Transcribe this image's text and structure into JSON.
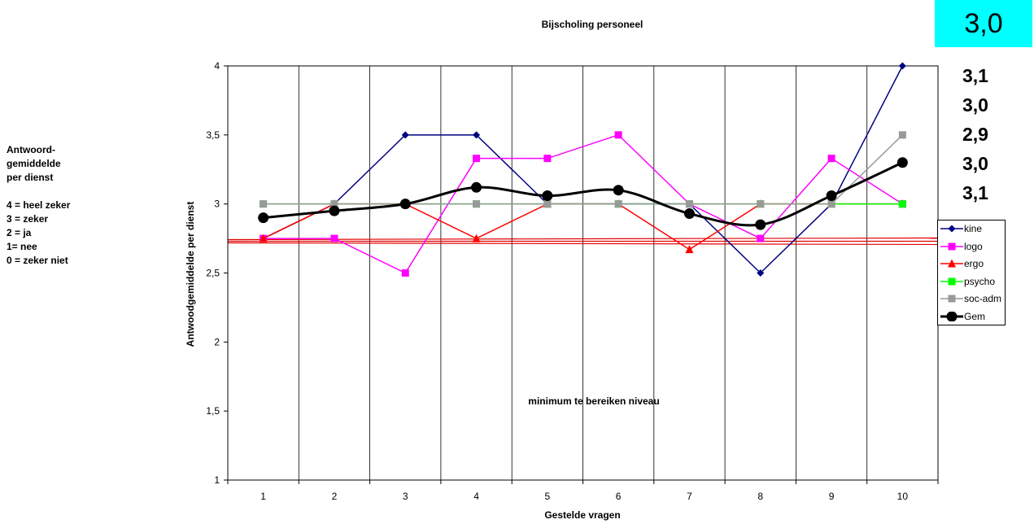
{
  "side_legend": {
    "heading_lines": [
      "Antwoord-",
      "gemiddelde",
      "per dienst"
    ],
    "scale_lines": [
      "4 = heel zeker",
      "3 = zeker",
      "2 = ja",
      "1= nee",
      "0 = zeker niet"
    ]
  },
  "overall_score": "3,0",
  "dept_scores": [
    "3,1",
    "3,0",
    "2,9",
    "3,0",
    "3,1"
  ],
  "chart_data": {
    "type": "line",
    "title": "Bijscholing personeel",
    "xlabel": "Gestelde vragen",
    "ylabel": "Antwoodgemiddelde per dienst",
    "categories": [
      "1",
      "2",
      "3",
      "4",
      "5",
      "6",
      "7",
      "8",
      "9",
      "10"
    ],
    "ylim": [
      1,
      4
    ],
    "yticks": [
      "1",
      "1,5",
      "2",
      "2,5",
      "3",
      "3,5",
      "4"
    ],
    "grid": "vertical",
    "legend_position": "right",
    "threshold": {
      "value": 2.73,
      "label": "minimum te bereiken niveau",
      "color": "#e00000"
    },
    "series": [
      {
        "name": "kine",
        "color": "#000080",
        "marker": "diamond",
        "values": [
          2.75,
          3.0,
          3.5,
          3.5,
          3.0,
          3.0,
          3.0,
          2.5,
          3.0,
          4.0
        ]
      },
      {
        "name": "logo",
        "color": "#ff00ff",
        "marker": "square",
        "values": [
          2.75,
          2.75,
          2.5,
          3.33,
          3.33,
          3.5,
          3.0,
          2.75,
          3.33,
          3.0
        ]
      },
      {
        "name": "ergo",
        "color": "#ff0000",
        "marker": "triangle",
        "values": [
          2.75,
          3.0,
          3.0,
          2.75,
          3.0,
          3.0,
          2.67,
          3.0,
          3.0,
          3.0
        ]
      },
      {
        "name": "psycho",
        "color": "#00ff00",
        "marker": "square",
        "values": [
          3.0,
          3.0,
          3.0,
          3.0,
          3.0,
          3.0,
          3.0,
          3.0,
          3.0,
          3.0
        ]
      },
      {
        "name": "soc-adm",
        "color": "#999999",
        "marker": "square",
        "values": [
          3.0,
          3.0,
          3.0,
          3.0,
          3.0,
          3.0,
          3.0,
          3.0,
          3.0,
          3.5
        ]
      },
      {
        "name": "Gem",
        "color": "#000000",
        "marker": "circle",
        "smooth": true,
        "bold": true,
        "values": [
          2.9,
          2.95,
          3.0,
          3.12,
          3.06,
          3.1,
          2.93,
          2.85,
          3.06,
          3.3
        ]
      }
    ]
  }
}
